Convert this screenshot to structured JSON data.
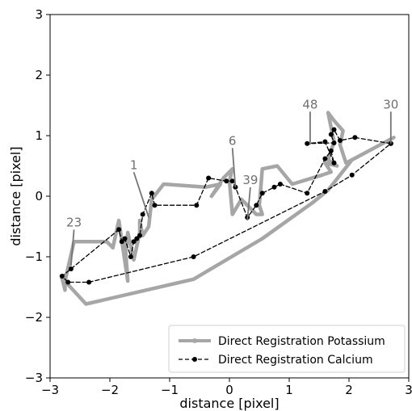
{
  "chart_data": {
    "type": "line",
    "title": "",
    "xlabel": "distance [pixel]",
    "ylabel": "distance [pixel]",
    "xlim": [
      -3,
      3
    ],
    "ylim": [
      -3,
      3
    ],
    "xticks": [
      "−3",
      "−2",
      "−1",
      "0",
      "1",
      "2",
      "3"
    ],
    "yticks": [
      "−3",
      "−2",
      "−1",
      "0",
      "1",
      "2",
      "3"
    ],
    "grid": false,
    "legend_position": "lower-right",
    "series": [
      {
        "name": "Direct Registration Potassium",
        "color": "#a6a6a6",
        "style": "solid",
        "markers": false,
        "points": [
          [
            2.75,
            0.97
          ],
          [
            1.95,
            0.55
          ],
          [
            1.85,
            0.85
          ],
          [
            1.9,
            1.08
          ],
          [
            1.75,
            1.25
          ],
          [
            1.65,
            1.38
          ],
          [
            1.75,
            0.9
          ],
          [
            1.65,
            0.6
          ],
          [
            1.8,
            0.5
          ],
          [
            1.6,
            0.55
          ],
          [
            1.7,
            0.4
          ],
          [
            1.55,
            0.35
          ],
          [
            1.05,
            0.2
          ],
          [
            0.8,
            0.5
          ],
          [
            0.55,
            0.45
          ],
          [
            0.5,
            -0.15
          ],
          [
            0.55,
            -0.3
          ],
          [
            0.45,
            -0.3
          ],
          [
            0.35,
            -0.2
          ],
          [
            0.2,
            -0.05
          ],
          [
            0.05,
            -0.3
          ],
          [
            0.0,
            0.25
          ],
          [
            0.05,
            0.45
          ],
          [
            -0.1,
            0.3
          ],
          [
            -0.3,
            0.0
          ],
          [
            -0.15,
            0.2
          ],
          [
            -0.4,
            0.15
          ],
          [
            -1.1,
            0.2
          ],
          [
            -1.3,
            -0.05
          ],
          [
            -1.35,
            -0.5
          ],
          [
            -1.45,
            -0.65
          ],
          [
            -1.5,
            -0.4
          ],
          [
            -1.5,
            -0.6
          ],
          [
            -1.6,
            -1.05
          ],
          [
            -1.7,
            -0.6
          ],
          [
            -1.75,
            -1.05
          ],
          [
            -1.75,
            -0.7
          ],
          [
            -1.7,
            -1.4
          ],
          [
            -1.85,
            -0.4
          ],
          [
            -1.95,
            -0.85
          ],
          [
            -2.05,
            -0.75
          ],
          [
            -2.6,
            -0.75
          ],
          [
            -2.75,
            -1.4
          ],
          [
            -2.75,
            -1.55
          ],
          [
            -2.8,
            -1.35
          ],
          [
            -2.4,
            -1.78
          ],
          [
            -0.6,
            -1.37
          ],
          [
            0.55,
            -0.7
          ],
          [
            1.4,
            -0.1
          ],
          [
            1.65,
            0.1
          ],
          [
            2.05,
            0.6
          ],
          [
            2.75,
            0.97
          ]
        ]
      },
      {
        "name": "Direct Registration Calcium",
        "color": "#000000",
        "style": "dashed",
        "markers": true,
        "points": [
          [
            2.7,
            0.87
          ],
          [
            2.1,
            0.97
          ],
          [
            1.85,
            0.92
          ],
          [
            1.75,
            1.1
          ],
          [
            1.7,
            1.02
          ],
          [
            1.75,
            0.88
          ],
          [
            1.3,
            0.87
          ],
          [
            1.6,
            0.9
          ],
          [
            1.75,
            0.55
          ],
          [
            1.7,
            0.75
          ],
          [
            1.6,
            0.62
          ],
          [
            1.3,
            0.05
          ],
          [
            0.85,
            0.2
          ],
          [
            0.75,
            0.15
          ],
          [
            0.55,
            0.05
          ],
          [
            0.45,
            -0.15
          ],
          [
            0.3,
            -0.35
          ],
          [
            0.1,
            0.15
          ],
          [
            0.05,
            0.25
          ],
          [
            -0.05,
            0.25
          ],
          [
            -0.35,
            0.3
          ],
          [
            -0.55,
            -0.15
          ],
          [
            -1.25,
            -0.15
          ],
          [
            -1.3,
            0.05
          ],
          [
            -1.45,
            -0.3
          ],
          [
            -1.5,
            -0.65
          ],
          [
            -1.55,
            -0.7
          ],
          [
            -1.6,
            -0.75
          ],
          [
            -1.65,
            -1.0
          ],
          [
            -1.75,
            -0.7
          ],
          [
            -1.8,
            -0.75
          ],
          [
            -1.85,
            -0.55
          ],
          [
            -2.65,
            -1.2
          ],
          [
            -2.8,
            -1.32
          ],
          [
            -2.7,
            -1.42
          ],
          [
            -2.35,
            -1.42
          ],
          [
            -0.6,
            -1.0
          ],
          [
            1.6,
            0.08
          ],
          [
            2.05,
            0.35
          ],
          [
            2.7,
            0.87
          ]
        ]
      }
    ],
    "annotations": [
      {
        "text": "1",
        "xy": [
          -1.35,
          -0.35
        ],
        "text_xy": [
          -1.6,
          0.45
        ]
      },
      {
        "text": "6",
        "xy": [
          0.1,
          0.15
        ],
        "text_xy": [
          0.05,
          0.85
        ]
      },
      {
        "text": "39",
        "xy": [
          0.3,
          -0.4
        ],
        "text_xy": [
          0.35,
          0.2
        ]
      },
      {
        "text": "48",
        "xy": [
          1.35,
          0.85
        ],
        "text_xy": [
          1.35,
          1.45
        ]
      },
      {
        "text": "30",
        "xy": [
          2.7,
          0.87
        ],
        "text_xy": [
          2.7,
          1.45
        ]
      },
      {
        "text": "23",
        "xy": [
          -2.65,
          -1.15
        ],
        "text_xy": [
          -2.6,
          -0.5
        ]
      }
    ]
  }
}
